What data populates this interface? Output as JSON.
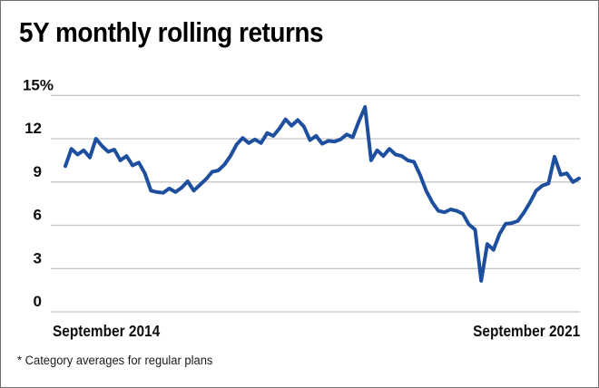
{
  "header": {
    "title": "5Y monthly rolling returns"
  },
  "footnote": "* Category averages for regular plans",
  "chart_data": {
    "type": "line",
    "title": "5Y monthly rolling returns",
    "unit": "%",
    "x_frequency": "monthly",
    "x_start_label": "September 2014",
    "x_end_label": "September 2021",
    "y_tick_labels": [
      "15%",
      "12",
      "9",
      "6",
      "3",
      "0"
    ],
    "y_ticks": [
      15,
      12,
      9,
      6,
      3,
      0
    ],
    "ylim": [
      0,
      15
    ],
    "grid": "horizontal-only",
    "legend": "none",
    "line_color": "#1e4f9f",
    "gridline_color": "#c6c6c6",
    "values": [
      10.1,
      11.3,
      10.9,
      11.2,
      10.7,
      12.0,
      11.5,
      11.1,
      11.25,
      10.5,
      10.8,
      10.15,
      10.35,
      9.6,
      8.4,
      8.3,
      8.25,
      8.55,
      8.3,
      8.6,
      9.05,
      8.4,
      8.8,
      9.2,
      9.7,
      9.8,
      10.2,
      10.8,
      11.6,
      12.05,
      11.7,
      11.95,
      11.7,
      12.4,
      12.2,
      12.7,
      13.35,
      12.9,
      13.3,
      12.85,
      11.9,
      12.2,
      11.65,
      11.85,
      11.8,
      11.95,
      12.3,
      12.1,
      13.2,
      14.2,
      10.5,
      11.2,
      10.8,
      11.3,
      10.9,
      10.8,
      10.5,
      10.4,
      9.5,
      8.4,
      7.6,
      7.0,
      6.9,
      7.1,
      7.0,
      6.8,
      6.05,
      5.7,
      2.15,
      4.7,
      4.3,
      5.4,
      6.1,
      6.15,
      6.3,
      6.9,
      7.6,
      8.4,
      8.75,
      8.9,
      10.75,
      9.5,
      9.6,
      9.0,
      9.25
    ]
  }
}
